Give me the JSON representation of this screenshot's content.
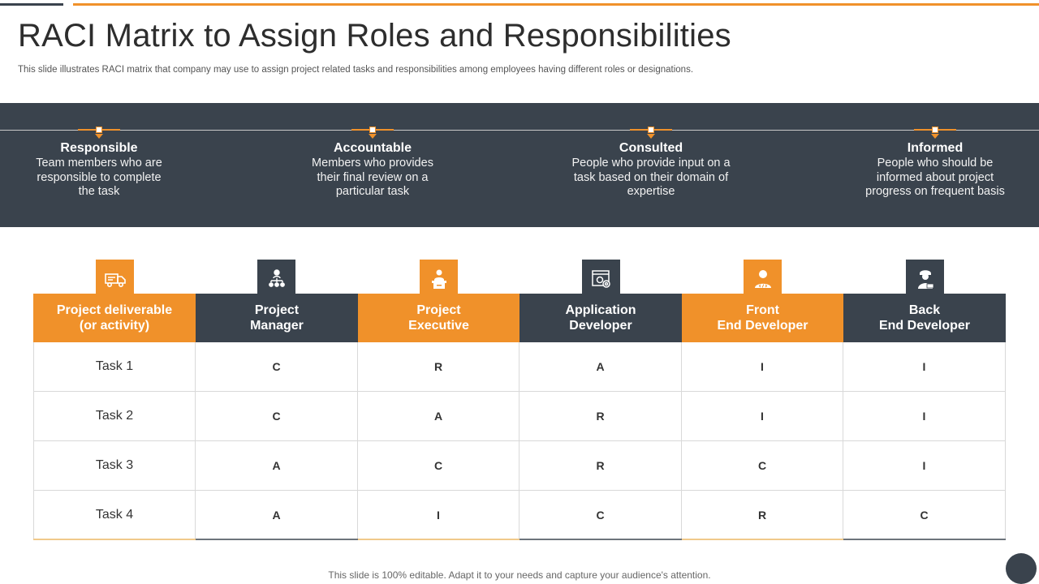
{
  "title": "RACI Matrix to Assign Roles and Responsibilities",
  "subtitle": "This slide illustrates RACI matrix that company may use to assign project related tasks and responsibilities among employees having different roles or designations.",
  "raci": [
    {
      "term": "Responsible",
      "desc": "Team members who are responsible to complete the task"
    },
    {
      "term": "Accountable",
      "desc": "Members who provides their final review on a particular task"
    },
    {
      "term": "Consulted",
      "desc": "People who provide input on a task based on their domain of expertise"
    },
    {
      "term": "Informed",
      "desc": "People who should be informed about project progress on frequent basis"
    }
  ],
  "icons": [
    {
      "name": "truck-icon"
    },
    {
      "name": "hierarchy-icon"
    },
    {
      "name": "executive-desk-icon"
    },
    {
      "name": "app-settings-icon"
    },
    {
      "name": "frontend-user-icon"
    },
    {
      "name": "backend-developer-icon"
    }
  ],
  "table": {
    "headers": [
      "Project deliverable\n(or activity)",
      "Project\nManager",
      "Project\nExecutive",
      "Application\nDeveloper",
      "Front\nEnd Developer",
      "Back\nEnd Developer"
    ],
    "rows": [
      [
        "Task 1",
        "C",
        "R",
        "A",
        "I",
        "I"
      ],
      [
        "Task 2",
        "C",
        "A",
        "R",
        "I",
        "I"
      ],
      [
        "Task 3",
        "A",
        "C",
        "R",
        "C",
        "I"
      ],
      [
        "Task 4",
        "A",
        "I",
        "C",
        "R",
        "C"
      ]
    ]
  },
  "footer": "This slide is 100% editable. Adapt it to your needs and capture your audience's attention.",
  "colors": {
    "orange": "#f0912a",
    "dark": "#3a434d"
  }
}
